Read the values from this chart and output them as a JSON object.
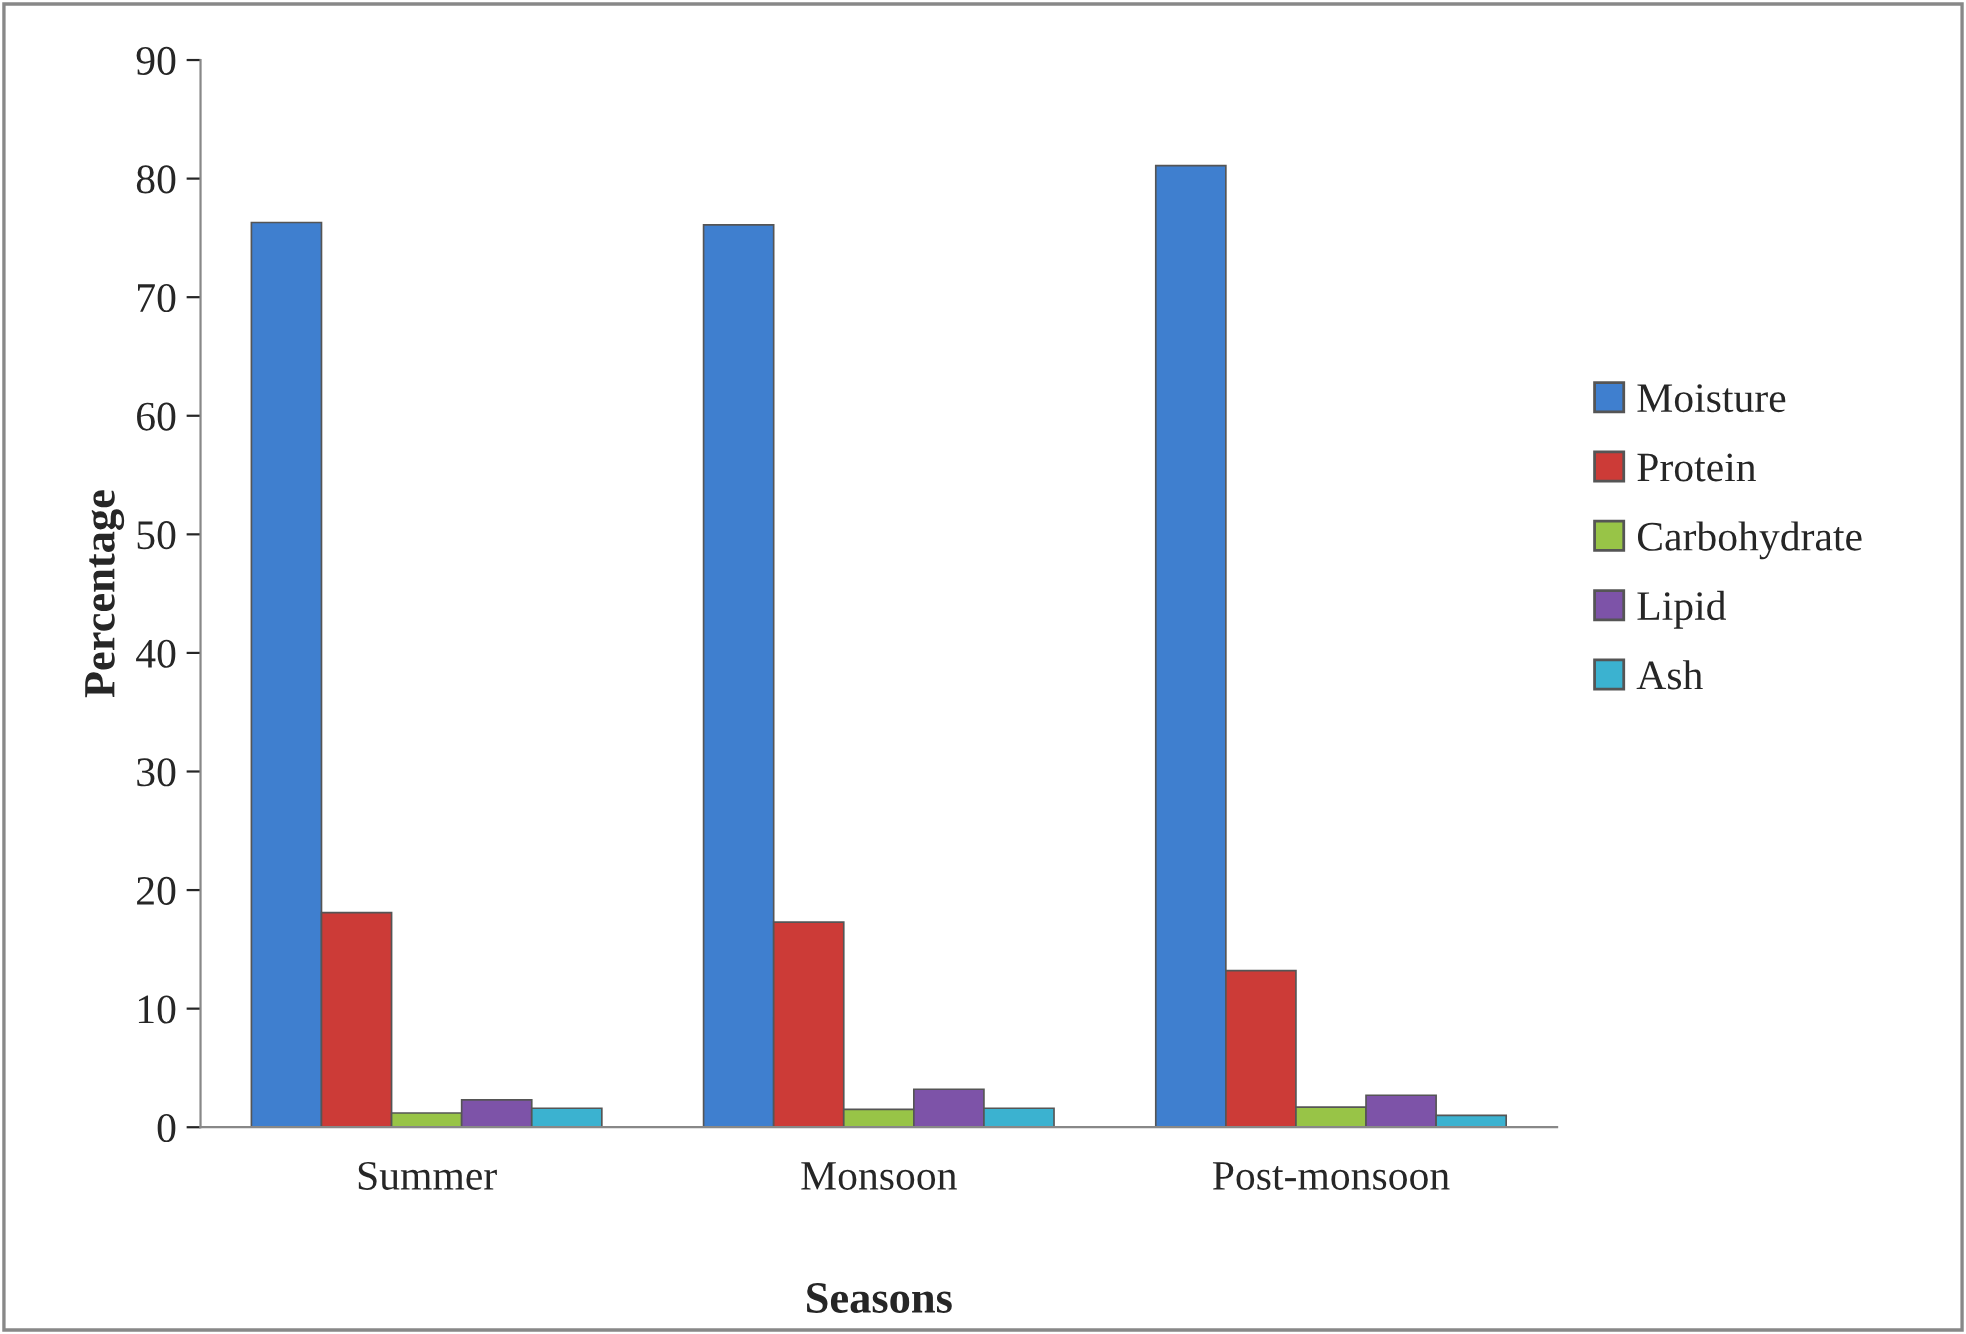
{
  "chart_data": {
    "type": "bar",
    "xlabel": "Seasons",
    "ylabel": "Percentage",
    "categories": [
      "Summer",
      "Monsoon",
      "Post-monsoon"
    ],
    "series": [
      {
        "name": "Moisture",
        "color": "#3f7fcf",
        "values": [
          76.3,
          76.1,
          81.1
        ]
      },
      {
        "name": "Protein",
        "color": "#cc3b37",
        "values": [
          18.1,
          17.3,
          13.2
        ]
      },
      {
        "name": "Carbohydrate",
        "color": "#98c447",
        "values": [
          1.2,
          1.5,
          1.7
        ]
      },
      {
        "name": "Lipid",
        "color": "#7d53a8",
        "values": [
          2.3,
          3.2,
          2.7
        ]
      },
      {
        "name": "Ash",
        "color": "#3bb2d0",
        "values": [
          1.6,
          1.6,
          1.0
        ]
      }
    ],
    "ylim": [
      0,
      90
    ],
    "yticks": [
      0,
      10,
      20,
      30,
      40,
      50,
      60,
      70,
      80,
      90
    ],
    "grid": false,
    "legend": "right"
  }
}
